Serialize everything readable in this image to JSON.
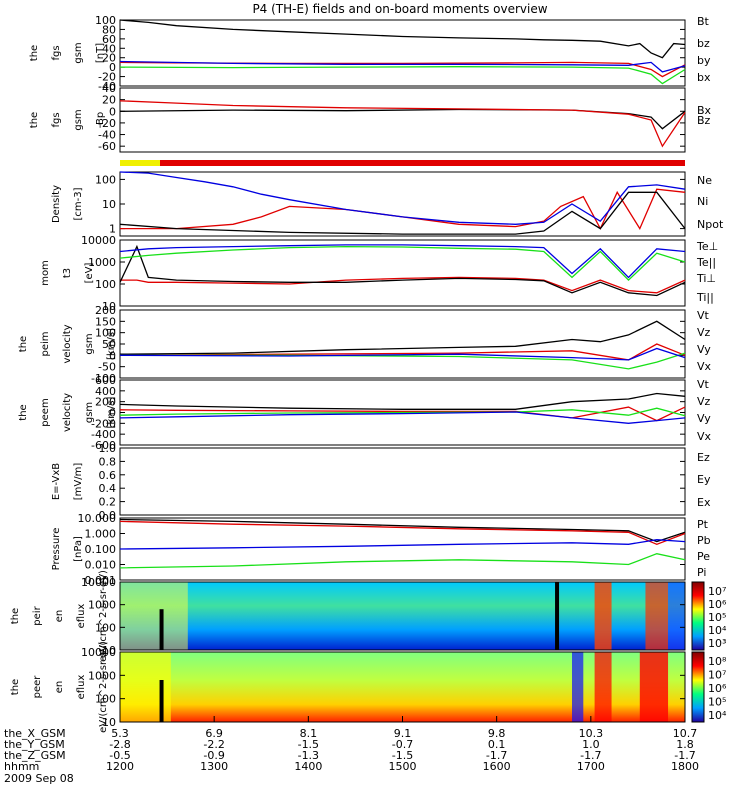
{
  "title": "P4 (TH-E) fields and on-board moments overview",
  "colors": {
    "black": "#000000",
    "red": "#e00000",
    "green": "#19e019",
    "blue": "#0000e0",
    "yellow": "#f0f000"
  },
  "chart_data": [
    {
      "type": "line",
      "ylabel": "the fgs gsm [nT]",
      "ylim": [
        -40,
        100
      ],
      "ticks": [
        "100",
        "80",
        "60",
        "40",
        "20",
        "0",
        "-20",
        "-40"
      ],
      "series": [
        {
          "name": "Bt",
          "color": "black",
          "x": [
            0,
            0.05,
            0.1,
            0.2,
            0.3,
            0.4,
            0.5,
            0.6,
            0.7,
            0.75,
            0.8,
            0.85,
            0.9,
            0.92,
            0.94,
            0.96,
            0.98,
            1
          ],
          "y": [
            100,
            95,
            88,
            80,
            75,
            70,
            65,
            62,
            60,
            58,
            57,
            55,
            45,
            50,
            30,
            20,
            50,
            48
          ]
        },
        {
          "name": "bz",
          "color": "red",
          "x": [
            0,
            0.1,
            0.3,
            0.5,
            0.7,
            0.8,
            0.85,
            0.9,
            0.94,
            0.96,
            1
          ],
          "y": [
            10,
            9,
            8,
            8,
            9,
            10,
            9,
            8,
            -5,
            -20,
            5
          ]
        },
        {
          "name": "by",
          "color": "green",
          "x": [
            0,
            0.2,
            0.4,
            0.6,
            0.8,
            0.9,
            0.94,
            0.96,
            1
          ],
          "y": [
            0,
            -1,
            0,
            1,
            0,
            -2,
            -15,
            -35,
            -5
          ]
        },
        {
          "name": "bx",
          "color": "blue",
          "x": [
            0,
            0.2,
            0.4,
            0.6,
            0.8,
            0.9,
            0.94,
            0.96,
            1
          ],
          "y": [
            12,
            8,
            6,
            6,
            5,
            4,
            10,
            -10,
            3
          ]
        }
      ]
    },
    {
      "type": "line",
      "ylabel": "the fgs gsm -Bp",
      "ylim": [
        -70,
        40
      ],
      "ticks": [
        "40",
        "20",
        "0",
        "-20",
        "-40",
        "-60"
      ],
      "series": [
        {
          "name": "Bx",
          "color": "black",
          "x": [
            0,
            0.2,
            0.4,
            0.6,
            0.8,
            0.9,
            0.94,
            0.96,
            1
          ],
          "y": [
            0,
            2,
            1,
            3,
            2,
            -4,
            -10,
            -30,
            0
          ]
        },
        {
          "name": "Bz",
          "color": "red",
          "x": [
            0,
            0.1,
            0.2,
            0.4,
            0.6,
            0.8,
            0.9,
            0.94,
            0.96,
            1
          ],
          "y": [
            18,
            14,
            10,
            6,
            4,
            2,
            -5,
            -15,
            -60,
            -2
          ]
        }
      ]
    },
    {
      "type": "line",
      "ylabel": "Density [cm-3]",
      "yscale": "log",
      "ylim": [
        0.5,
        200
      ],
      "ticks": [
        "100",
        "10",
        "1"
      ],
      "series": [
        {
          "name": "Ne",
          "color": "red",
          "x": [
            0,
            0.1,
            0.2,
            0.25,
            0.3,
            0.4,
            0.5,
            0.6,
            0.7,
            0.75,
            0.78,
            0.82,
            0.85,
            0.88,
            0.92,
            0.95,
            1
          ],
          "y": [
            1,
            1,
            1.5,
            3,
            8,
            6,
            3,
            1.5,
            1.2,
            2,
            8,
            20,
            1,
            30,
            1,
            40,
            30
          ]
        },
        {
          "name": "Ni",
          "color": "black",
          "x": [
            0,
            0.1,
            0.3,
            0.5,
            0.7,
            0.75,
            0.8,
            0.85,
            0.9,
            0.95,
            1
          ],
          "y": [
            1.5,
            1,
            0.7,
            0.6,
            0.6,
            0.8,
            5,
            1,
            30,
            30,
            1
          ]
        },
        {
          "name": "Npot",
          "color": "blue",
          "x": [
            0,
            0.05,
            0.1,
            0.15,
            0.2,
            0.25,
            0.3,
            0.4,
            0.5,
            0.6,
            0.7,
            0.75,
            0.8,
            0.85,
            0.9,
            0.95,
            1
          ],
          "y": [
            200,
            180,
            120,
            80,
            50,
            25,
            15,
            6,
            3,
            1.8,
            1.5,
            1.8,
            10,
            2,
            50,
            60,
            40
          ]
        }
      ]
    },
    {
      "type": "line",
      "ylabel": "mom t3 [eV]",
      "yscale": "log",
      "ylim": [
        10,
        10000
      ],
      "ticks": [
        "10000",
        "1000",
        "100",
        "10"
      ],
      "series": [
        {
          "name": "Te⊥",
          "color": "red",
          "x": [
            0,
            0.03,
            0.05,
            0.1,
            0.2,
            0.3,
            0.4,
            0.5,
            0.6,
            0.7,
            0.75,
            0.8,
            0.85,
            0.9,
            0.95,
            1
          ],
          "y": [
            150,
            150,
            120,
            120,
            110,
            100,
            150,
            180,
            200,
            180,
            150,
            50,
            150,
            50,
            40,
            150
          ]
        },
        {
          "name": "Te||",
          "color": "black",
          "x": [
            0,
            0.03,
            0.05,
            0.1,
            0.2,
            0.3,
            0.4,
            0.5,
            0.6,
            0.7,
            0.75,
            0.8,
            0.85,
            0.9,
            0.95,
            1
          ],
          "y": [
            120,
            5000,
            200,
            150,
            130,
            120,
            120,
            150,
            180,
            160,
            140,
            40,
            120,
            40,
            30,
            120
          ]
        },
        {
          "name": "Ti⊥",
          "color": "blue",
          "x": [
            0,
            0.05,
            0.1,
            0.2,
            0.3,
            0.4,
            0.5,
            0.6,
            0.7,
            0.75,
            0.8,
            0.85,
            0.9,
            0.95,
            1
          ],
          "y": [
            3000,
            4000,
            4500,
            5000,
            5500,
            6000,
            6000,
            5500,
            5000,
            4500,
            300,
            4000,
            200,
            4000,
            3000
          ]
        },
        {
          "name": "Ti||",
          "color": "green",
          "x": [
            0,
            0.05,
            0.1,
            0.2,
            0.3,
            0.4,
            0.5,
            0.6,
            0.7,
            0.75,
            0.8,
            0.85,
            0.9,
            0.95,
            1
          ],
          "y": [
            1500,
            2000,
            2500,
            3500,
            4500,
            5000,
            4800,
            4200,
            3800,
            3000,
            200,
            3000,
            150,
            2500,
            1000
          ]
        }
      ]
    },
    {
      "type": "line",
      "ylabel": "the peim velocity gsm [km/s]",
      "ylim": [
        -100,
        200
      ],
      "ticks": [
        "200",
        "150",
        "100",
        "50",
        "0",
        "-50",
        "-100"
      ],
      "series": [
        {
          "name": "Vt",
          "color": "black",
          "x": [
            0,
            0.2,
            0.4,
            0.6,
            0.7,
            0.8,
            0.85,
            0.9,
            0.95,
            1
          ],
          "y": [
            5,
            10,
            25,
            35,
            40,
            70,
            60,
            90,
            150,
            70
          ]
        },
        {
          "name": "Vz",
          "color": "red",
          "x": [
            0,
            0.3,
            0.6,
            0.8,
            0.9,
            0.95,
            1
          ],
          "y": [
            0,
            5,
            10,
            20,
            -20,
            50,
            0
          ]
        },
        {
          "name": "Vy",
          "color": "green",
          "x": [
            0,
            0.3,
            0.6,
            0.8,
            0.9,
            0.95,
            1
          ],
          "y": [
            0,
            0,
            -5,
            -20,
            -60,
            -30,
            10
          ]
        },
        {
          "name": "Vx",
          "color": "blue",
          "x": [
            0,
            0.3,
            0.6,
            0.8,
            0.9,
            0.95,
            1
          ],
          "y": [
            0,
            -3,
            5,
            -10,
            -20,
            30,
            -10
          ]
        }
      ]
    },
    {
      "type": "line",
      "ylabel": "the peem velocity gsm [km/s]",
      "ylim": [
        -600,
        600
      ],
      "ticks": [
        "600",
        "400",
        "200",
        "0",
        "-200",
        "-400",
        "-600"
      ],
      "series": [
        {
          "name": "Vt",
          "color": "black",
          "x": [
            0,
            0.1,
            0.3,
            0.5,
            0.7,
            0.8,
            0.9,
            0.95,
            1
          ],
          "y": [
            150,
            120,
            80,
            60,
            60,
            200,
            250,
            350,
            300
          ]
        },
        {
          "name": "Vz",
          "color": "red",
          "x": [
            0,
            0.1,
            0.3,
            0.5,
            0.7,
            0.8,
            0.9,
            0.95,
            1
          ],
          "y": [
            50,
            40,
            30,
            20,
            20,
            -100,
            100,
            -150,
            100
          ]
        },
        {
          "name": "Vy",
          "color": "green",
          "x": [
            0,
            0.1,
            0.3,
            0.5,
            0.7,
            0.8,
            0.9,
            0.95,
            1
          ],
          "y": [
            -50,
            -30,
            -10,
            0,
            10,
            50,
            -50,
            80,
            -60
          ]
        },
        {
          "name": "Vx",
          "color": "blue",
          "x": [
            0,
            0.1,
            0.3,
            0.5,
            0.7,
            0.8,
            0.9,
            0.95,
            1
          ],
          "y": [
            -100,
            -80,
            -40,
            -20,
            10,
            -100,
            -200,
            -150,
            -100
          ]
        }
      ]
    },
    {
      "type": "line",
      "ylabel": "E=-VxB [mV/m]",
      "ylim": [
        0,
        1.0
      ],
      "ticks": [
        "1.0",
        "0.8",
        "0.6",
        "0.4",
        "0.2",
        "0.0"
      ],
      "series": [
        {
          "name": "Ez",
          "color": "red",
          "x": [],
          "y": []
        },
        {
          "name": "Ey",
          "color": "green",
          "x": [],
          "y": []
        },
        {
          "name": "Ex",
          "color": "blue",
          "x": [],
          "y": []
        }
      ]
    },
    {
      "type": "line",
      "ylabel": "Pressure [nPa]",
      "yscale": "log",
      "ylim": [
        0.001,
        10
      ],
      "ticks": [
        "10.000",
        "1.000",
        "0.100",
        "0.010",
        "0.001"
      ],
      "series": [
        {
          "name": "Pt",
          "color": "black",
          "x": [
            0,
            0.2,
            0.4,
            0.6,
            0.8,
            0.9,
            0.95,
            1
          ],
          "y": [
            8,
            6,
            4,
            2.5,
            1.8,
            1.5,
            0.3,
            1.2
          ]
        },
        {
          "name": "Pb",
          "color": "red",
          "x": [
            0,
            0.2,
            0.4,
            0.6,
            0.8,
            0.9,
            0.95,
            1
          ],
          "y": [
            6,
            4,
            3,
            2,
            1.5,
            1.2,
            0.2,
            1
          ]
        },
        {
          "name": "Pe",
          "color": "green",
          "x": [
            0,
            0.2,
            0.4,
            0.6,
            0.8,
            0.9,
            0.95,
            1
          ],
          "y": [
            0.006,
            0.008,
            0.015,
            0.02,
            0.015,
            0.01,
            0.05,
            0.02
          ]
        },
        {
          "name": "Pi",
          "color": "blue",
          "x": [
            0,
            0.2,
            0.4,
            0.6,
            0.8,
            0.9,
            0.95,
            1
          ],
          "y": [
            0.1,
            0.12,
            0.15,
            0.2,
            0.25,
            0.2,
            0.4,
            0.3
          ]
        }
      ]
    },
    {
      "type": "heatmap",
      "ylabel": "the peir en eflux eV/(cm^2-s-sr-eV)",
      "yscale": "log",
      "ylim": [
        10,
        10000
      ],
      "ticks": [
        "10000",
        "1000",
        "100",
        "10"
      ],
      "colorbar_ticks": [
        "10⁷",
        "10⁶",
        "10⁵",
        "10⁴",
        "10³"
      ]
    },
    {
      "type": "heatmap",
      "ylabel": "the peer en eflux eV/(cm^2-s-sr-eV)",
      "yscale": "log",
      "ylim": [
        10,
        10000
      ],
      "ticks": [
        "10000",
        "1000",
        "100",
        "10"
      ],
      "colorbar_ticks": [
        "10⁸",
        "10⁷",
        "10⁶",
        "10⁵",
        "10⁴"
      ]
    }
  ],
  "x_axis": {
    "rows": [
      {
        "label": "the_X_GSM",
        "values": [
          "5.3",
          "6.9",
          "8.1",
          "9.1",
          "9.8",
          "10.3",
          "10.7"
        ]
      },
      {
        "label": "the_Y_GSM",
        "values": [
          "-2.8",
          "-2.2",
          "-1.5",
          "-0.7",
          "0.1",
          "1.0",
          "1.8"
        ]
      },
      {
        "label": "the_Z_GSM",
        "values": [
          "-0.5",
          "-0.9",
          "-1.3",
          "-1.5",
          "-1.7",
          "-1.7",
          "-1.7"
        ]
      },
      {
        "label": "hhmm",
        "values": [
          "1200",
          "1300",
          "1400",
          "1500",
          "1600",
          "1700",
          "1800"
        ]
      }
    ],
    "date": "2009 Sep 08"
  }
}
